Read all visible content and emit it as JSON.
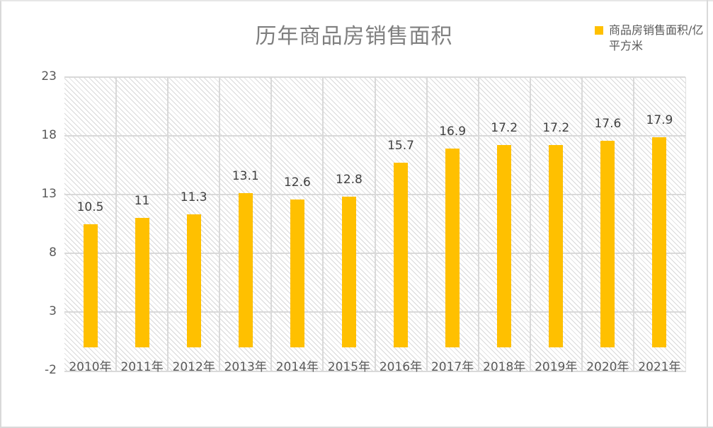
{
  "title": "历年商品房销售面积",
  "legend": {
    "label": "商品房销售面积/亿平方米",
    "color": "#FFC000"
  },
  "colors": {
    "bar": "#FFC000",
    "grid": "#D9D9D9",
    "title": "#7F7F7F",
    "label": "#595959"
  },
  "y_axis": {
    "ticks": [
      "23",
      "18",
      "13",
      "8",
      "3",
      "-2"
    ]
  },
  "chart_data": {
    "type": "bar",
    "title": "历年商品房销售面积",
    "categories": [
      "2010年",
      "2011年",
      "2012年",
      "2013年",
      "2014年",
      "2015年",
      "2016年",
      "2017年",
      "2018年",
      "2019年",
      "2020年",
      "2021年"
    ],
    "series": [
      {
        "name": "商品房销售面积/亿平方米",
        "color": "#FFC000",
        "values": [
          10.5,
          11,
          11.3,
          13.1,
          12.6,
          12.8,
          15.7,
          16.9,
          17.2,
          17.2,
          17.6,
          17.9
        ]
      }
    ],
    "data_labels": [
      "10.5",
      "11",
      "11.3",
      "13.1",
      "12.6",
      "12.8",
      "15.7",
      "16.9",
      "17.2",
      "17.2",
      "17.6",
      "17.9"
    ],
    "xlabel": "",
    "ylabel": "",
    "ylim": [
      -2,
      23
    ],
    "yticks": [
      -2,
      3,
      8,
      13,
      18,
      23
    ],
    "grid": true,
    "legend_position": "top-right"
  }
}
